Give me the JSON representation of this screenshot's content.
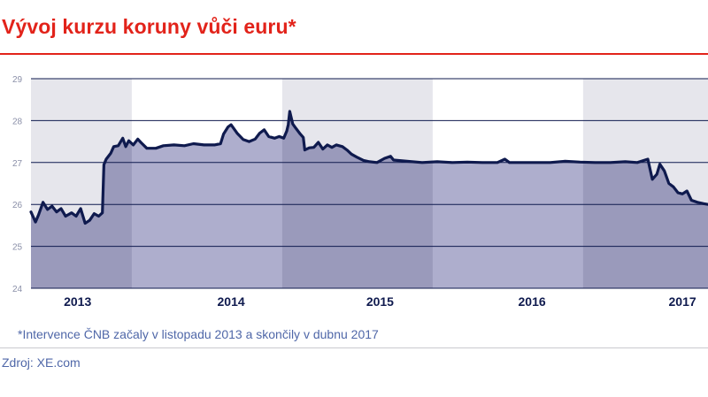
{
  "header": {
    "title": "Vývoj kurzu koruny vůči euru*"
  },
  "footnote": "*Intervence ČNB začaly v listopadu 2013 a skončily v dubnu 2017",
  "source": "Zdroj: XE.com",
  "chart_data": {
    "type": "area",
    "title": "Vývoj kurzu koruny vůči euru*",
    "xlabel": "",
    "ylabel": "",
    "ylim": [
      24,
      29
    ],
    "xlim": [
      2012.75,
      2017.25
    ],
    "yticks": [
      "24",
      "25",
      "26",
      "27",
      "28",
      "29"
    ],
    "xticks": [
      {
        "label": "2013",
        "x": 2013.06
      },
      {
        "label": "2014",
        "x": 2014.08
      },
      {
        "label": "2015",
        "x": 2015.07
      },
      {
        "label": "2016",
        "x": 2016.08
      },
      {
        "label": "2017",
        "x": 2017.08
      }
    ],
    "grid": true,
    "legend": "none",
    "shaded_periods": [
      [
        2012.75,
        2013.42
      ],
      [
        2014.42,
        2015.42
      ],
      [
        2016.42,
        2017.25
      ]
    ],
    "colors": {
      "line": "#0f1a4e",
      "area_light": "#aeaecd",
      "area_dark": "#9a9abb",
      "band_light": "#ffffff",
      "band_dark": "#e6e6ec",
      "grid": "#0f1a4e",
      "tick": "#8a8fa8",
      "year_label": "#0f1a4e"
    },
    "series": [
      {
        "values": [
          [
            2012.75,
            25.82
          ],
          [
            2012.78,
            25.58
          ],
          [
            2012.8,
            25.75
          ],
          [
            2012.83,
            26.05
          ],
          [
            2012.86,
            25.88
          ],
          [
            2012.89,
            25.96
          ],
          [
            2012.92,
            25.82
          ],
          [
            2012.95,
            25.9
          ],
          [
            2012.98,
            25.72
          ],
          [
            2013.02,
            25.8
          ],
          [
            2013.05,
            25.72
          ],
          [
            2013.08,
            25.9
          ],
          [
            2013.11,
            25.55
          ],
          [
            2013.14,
            25.62
          ],
          [
            2013.17,
            25.78
          ],
          [
            2013.2,
            25.72
          ],
          [
            2013.225,
            25.8
          ],
          [
            2013.235,
            26.95
          ],
          [
            2013.25,
            27.08
          ],
          [
            2013.28,
            27.22
          ],
          [
            2013.3,
            27.38
          ],
          [
            2013.33,
            27.4
          ],
          [
            2013.36,
            27.58
          ],
          [
            2013.38,
            27.38
          ],
          [
            2013.4,
            27.52
          ],
          [
            2013.43,
            27.42
          ],
          [
            2013.46,
            27.56
          ],
          [
            2013.48,
            27.48
          ],
          [
            2013.52,
            27.34
          ],
          [
            2013.58,
            27.34
          ],
          [
            2013.63,
            27.4
          ],
          [
            2013.7,
            27.42
          ],
          [
            2013.77,
            27.4
          ],
          [
            2013.83,
            27.45
          ],
          [
            2013.9,
            27.42
          ],
          [
            2013.97,
            27.42
          ],
          [
            2014.01,
            27.45
          ],
          [
            2014.03,
            27.68
          ],
          [
            2014.06,
            27.85
          ],
          [
            2014.08,
            27.9
          ],
          [
            2014.12,
            27.7
          ],
          [
            2014.16,
            27.55
          ],
          [
            2014.2,
            27.5
          ],
          [
            2014.24,
            27.56
          ],
          [
            2014.27,
            27.7
          ],
          [
            2014.3,
            27.78
          ],
          [
            2014.33,
            27.62
          ],
          [
            2014.37,
            27.58
          ],
          [
            2014.4,
            27.62
          ],
          [
            2014.43,
            27.58
          ],
          [
            2014.45,
            27.75
          ],
          [
            2014.46,
            27.9
          ],
          [
            2014.47,
            28.22
          ],
          [
            2014.49,
            27.92
          ],
          [
            2014.51,
            27.82
          ],
          [
            2014.54,
            27.68
          ],
          [
            2014.56,
            27.6
          ],
          [
            2014.57,
            27.3
          ],
          [
            2014.6,
            27.35
          ],
          [
            2014.63,
            27.36
          ],
          [
            2014.66,
            27.48
          ],
          [
            2014.69,
            27.32
          ],
          [
            2014.72,
            27.42
          ],
          [
            2014.75,
            27.36
          ],
          [
            2014.78,
            27.42
          ],
          [
            2014.82,
            27.38
          ],
          [
            2014.85,
            27.3
          ],
          [
            2014.88,
            27.2
          ],
          [
            2014.92,
            27.12
          ],
          [
            2014.96,
            27.05
          ],
          [
            2015.0,
            27.02
          ],
          [
            2015.05,
            27.0
          ],
          [
            2015.1,
            27.1
          ],
          [
            2015.14,
            27.15
          ],
          [
            2015.16,
            27.06
          ],
          [
            2015.25,
            27.03
          ],
          [
            2015.35,
            27.0
          ],
          [
            2015.45,
            27.02
          ],
          [
            2015.55,
            27.0
          ],
          [
            2015.65,
            27.01
          ],
          [
            2015.75,
            27.0
          ],
          [
            2015.85,
            27.0
          ],
          [
            2015.9,
            27.08
          ],
          [
            2015.93,
            27.0
          ],
          [
            2016.0,
            27.0
          ],
          [
            2016.1,
            27.0
          ],
          [
            2016.2,
            27.0
          ],
          [
            2016.3,
            27.03
          ],
          [
            2016.4,
            27.01
          ],
          [
            2016.5,
            27.0
          ],
          [
            2016.6,
            27.0
          ],
          [
            2016.7,
            27.02
          ],
          [
            2016.78,
            27.0
          ],
          [
            2016.85,
            27.08
          ],
          [
            2016.88,
            26.6
          ],
          [
            2016.91,
            26.72
          ],
          [
            2016.93,
            26.96
          ],
          [
            2016.96,
            26.8
          ],
          [
            2016.99,
            26.5
          ],
          [
            2017.02,
            26.42
          ],
          [
            2017.05,
            26.28
          ],
          [
            2017.08,
            26.25
          ],
          [
            2017.11,
            26.32
          ],
          [
            2017.14,
            26.1
          ],
          [
            2017.18,
            26.05
          ],
          [
            2017.22,
            26.02
          ],
          [
            2017.25,
            26.0
          ]
        ]
      }
    ]
  }
}
